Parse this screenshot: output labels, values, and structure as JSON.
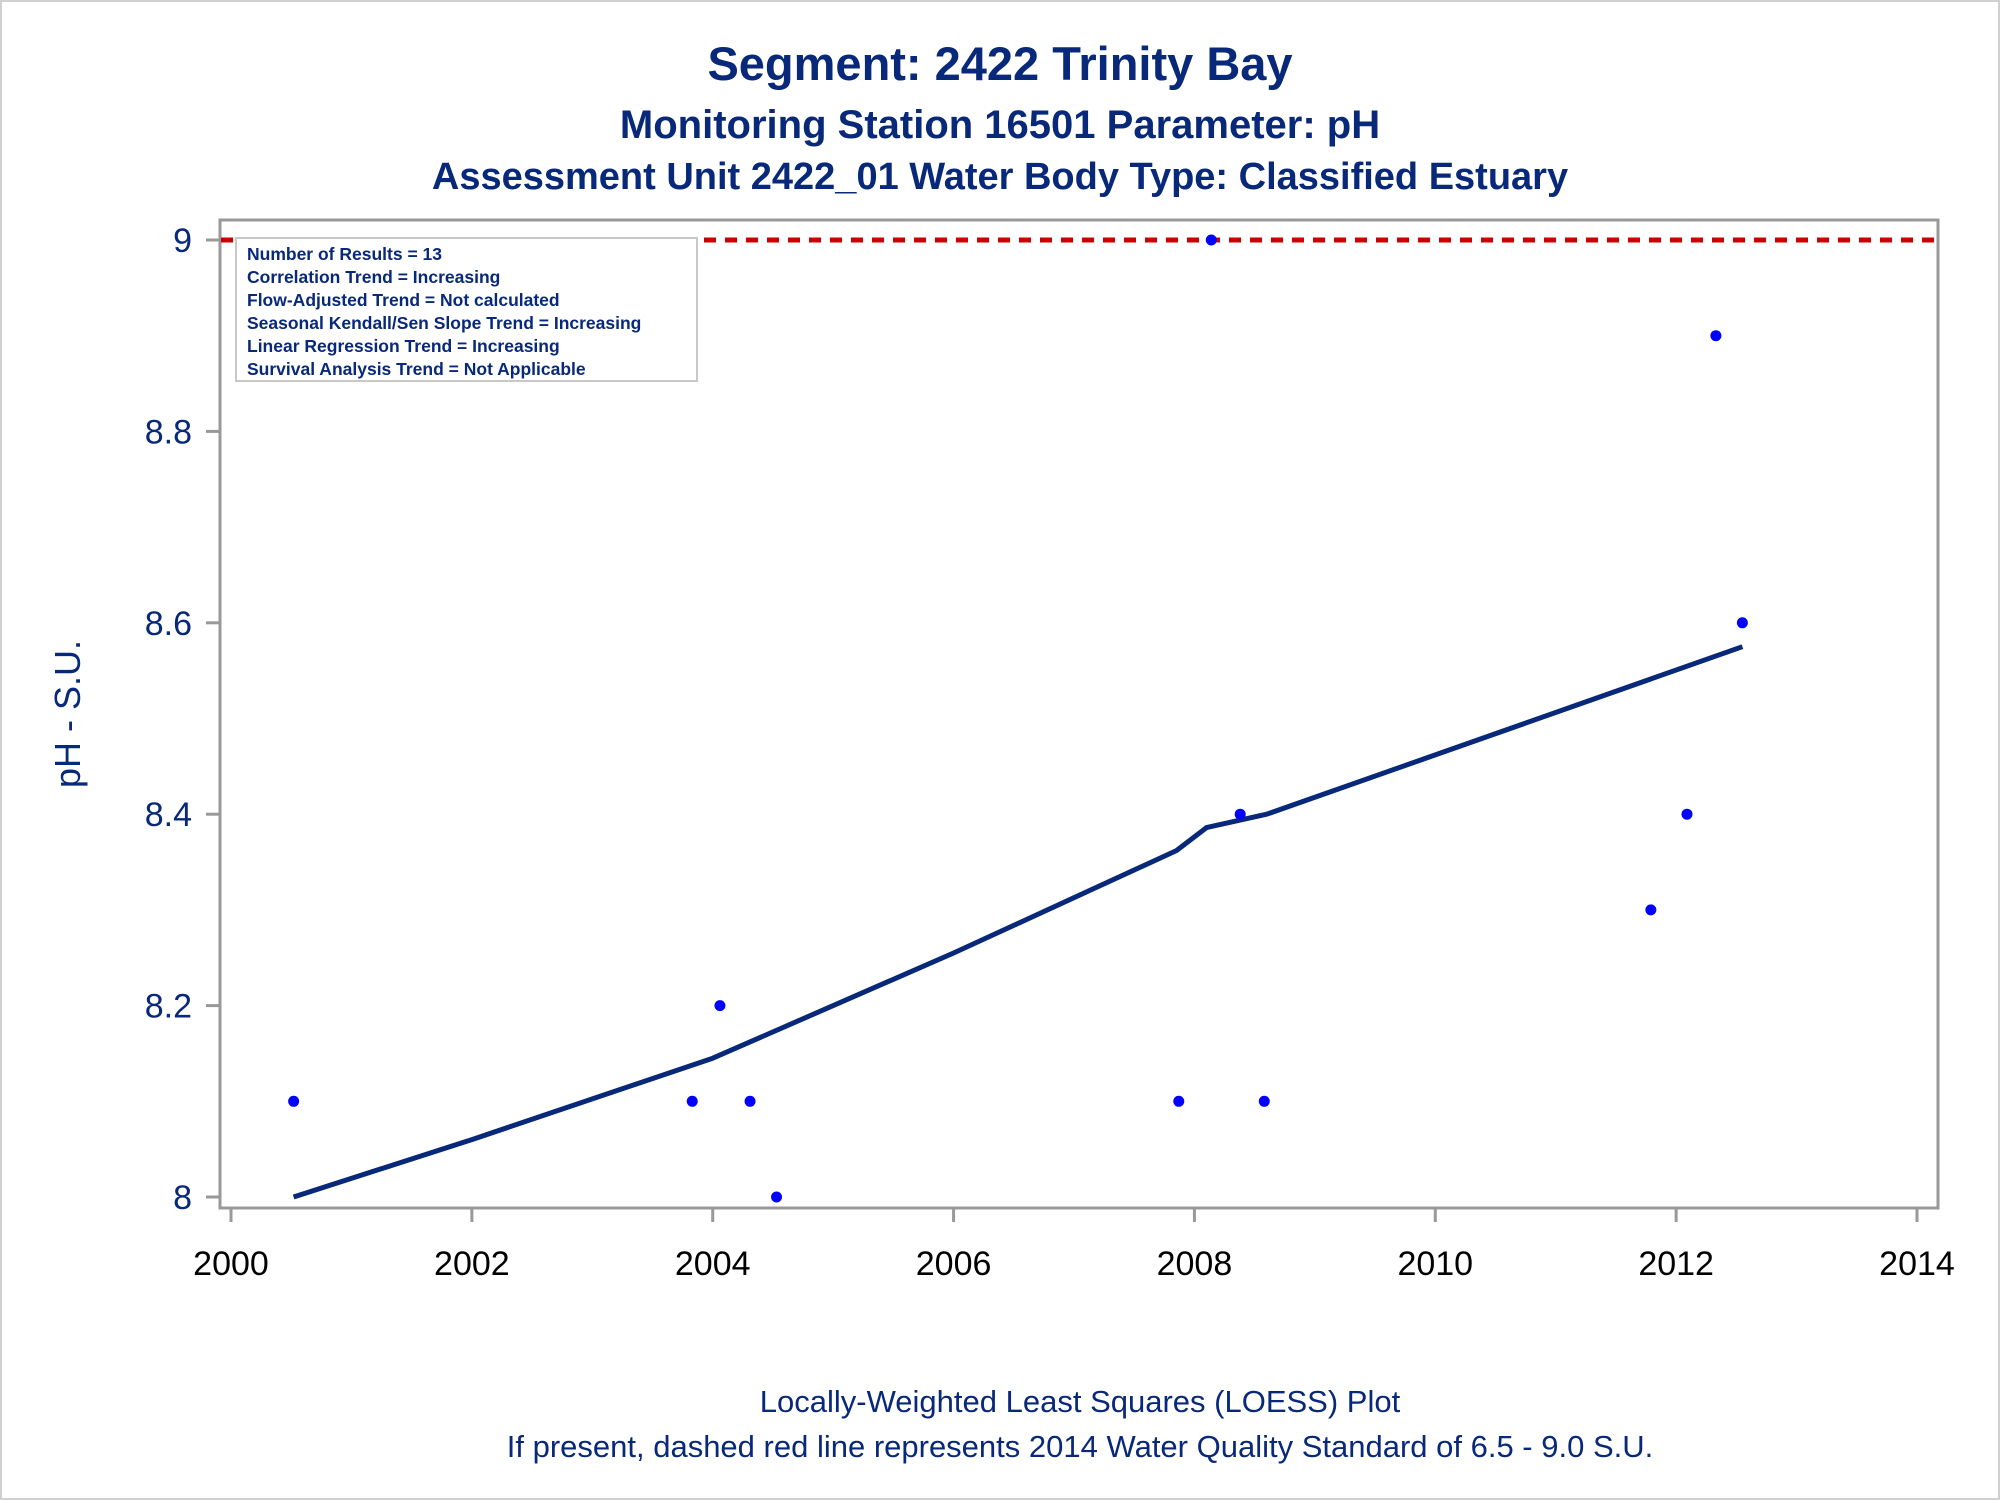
{
  "chart_data": {
    "type": "scatter",
    "title": "Segment: 2422  Trinity Bay",
    "subtitle": "Monitoring Station 16501 Parameter: pH",
    "subtitle2": "Assessment Unit 2422_01   Water Body Type: Classified Estuary",
    "xlabel": "",
    "ylabel": "pH - S.U.",
    "xlim": [
      2000,
      2014
    ],
    "ylim": [
      8.0,
      9.0
    ],
    "x_ticks": [
      2000,
      2002,
      2004,
      2006,
      2008,
      2010,
      2012,
      2014
    ],
    "x_tick_labels": [
      "2000",
      "2002",
      "2004",
      "2006",
      "2008",
      "2010",
      "2012",
      "2014"
    ],
    "y_ticks": [
      8.0,
      8.2,
      8.4,
      8.6,
      8.8,
      9.0
    ],
    "y_tick_labels": [
      "8",
      "8.2",
      "8.4",
      "8.6",
      "8.8",
      "9"
    ],
    "grid": false,
    "points": [
      {
        "x": 2000.52,
        "y": 8.1
      },
      {
        "x": 2003.83,
        "y": 8.1
      },
      {
        "x": 2004.06,
        "y": 8.2
      },
      {
        "x": 2004.31,
        "y": 8.1
      },
      {
        "x": 2004.53,
        "y": 8.0
      },
      {
        "x": 2007.87,
        "y": 8.1
      },
      {
        "x": 2008.14,
        "y": 9.0
      },
      {
        "x": 2008.38,
        "y": 8.4
      },
      {
        "x": 2008.58,
        "y": 8.1
      },
      {
        "x": 2011.79,
        "y": 8.3
      },
      {
        "x": 2012.09,
        "y": 8.4
      },
      {
        "x": 2012.33,
        "y": 8.9
      },
      {
        "x": 2012.55,
        "y": 8.6
      }
    ],
    "loess": [
      {
        "x": 2000.52,
        "y": 8.0
      },
      {
        "x": 2002.0,
        "y": 8.06
      },
      {
        "x": 2004.0,
        "y": 8.145
      },
      {
        "x": 2006.0,
        "y": 8.255
      },
      {
        "x": 2007.85,
        "y": 8.362
      },
      {
        "x": 2008.1,
        "y": 8.386
      },
      {
        "x": 2008.6,
        "y": 8.4
      },
      {
        "x": 2010.0,
        "y": 8.462
      },
      {
        "x": 2012.55,
        "y": 8.575
      }
    ],
    "reference_line": {
      "y": 9.0,
      "style": "dashed",
      "color": "#cc0000"
    },
    "colors": {
      "points": "#0000ff",
      "loess": "#08287a",
      "text": "#08287a"
    },
    "legend_position": "top-left",
    "stats": [
      "Number of Results = 13",
      "Correlation Trend = Increasing",
      "Flow-Adjusted Trend = Not calculated",
      "Seasonal Kendall/Sen Slope Trend = Increasing",
      "Linear Regression Trend = Increasing",
      "Survival Analysis Trend = Not Applicable"
    ],
    "footnotes": [
      "Locally-Weighted Least Squares (LOESS) Plot",
      "If present, dashed red line represents 2014 Water Quality Standard of 6.5 - 9.0 S.U."
    ]
  }
}
